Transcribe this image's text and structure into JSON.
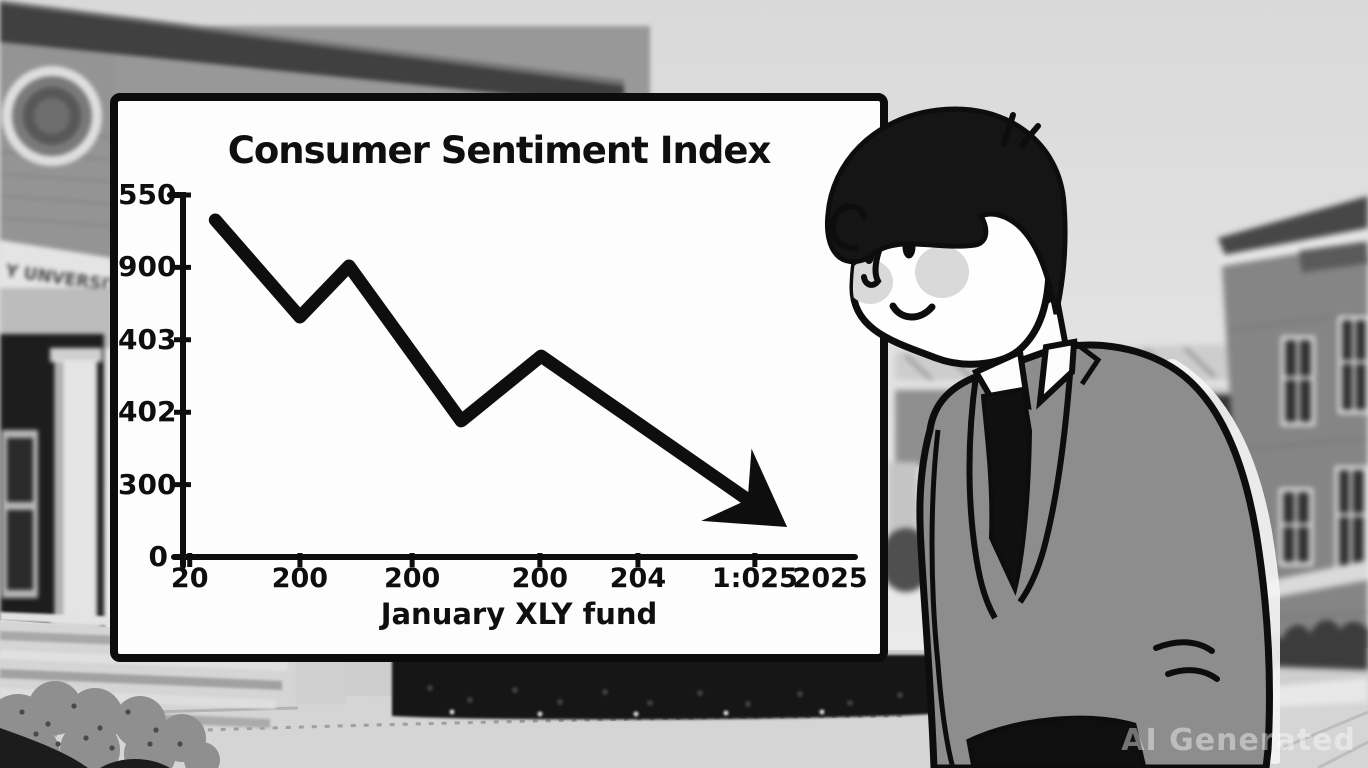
{
  "watermark_text": "AI Generated",
  "scene": {
    "left_building_sign": "Y UNVERSITY",
    "palette": {
      "ink": "#0d0d0d",
      "panel_background": "#fdfdfd",
      "suit_gray": "#8d8d8d",
      "sky_gray": "#e3e3e3",
      "cheek_gray": "#d9d9d9"
    }
  },
  "chart_data": {
    "type": "line",
    "title": "Consumer Sentiment Index",
    "xlabel": "January XLY fund",
    "ylabel": "",
    "grid": false,
    "legend": "none",
    "line_color": "#0e0e0e",
    "trend_annotation": "downward arrow at end of line",
    "y_ticks": [
      {
        "label": "550",
        "f": 0.0
      },
      {
        "label": "900",
        "f": 0.2
      },
      {
        "label": "403",
        "f": 0.4
      },
      {
        "label": "402",
        "f": 0.6
      },
      {
        "label": "300",
        "f": 0.8
      },
      {
        "label": "0",
        "f": 1.0
      }
    ],
    "x_ticks": [
      {
        "label": "20",
        "f": 0.01,
        "tick": true
      },
      {
        "label": "200",
        "f": 0.174,
        "tick": true
      },
      {
        "label": "200",
        "f": 0.341,
        "tick": true
      },
      {
        "label": "200",
        "f": 0.531,
        "tick": true
      },
      {
        "label": "204",
        "f": 0.677,
        "tick": true
      },
      {
        "label": "1:025",
        "f": 0.851,
        "tick": true
      },
      {
        "label": "2025",
        "f": 0.963,
        "tick": false
      }
    ],
    "points_norm": [
      [
        0.048,
        0.931
      ],
      [
        0.174,
        0.663
      ],
      [
        0.247,
        0.804
      ],
      [
        0.414,
        0.376
      ],
      [
        0.533,
        0.555
      ],
      [
        0.899,
        0.083
      ]
    ]
  }
}
